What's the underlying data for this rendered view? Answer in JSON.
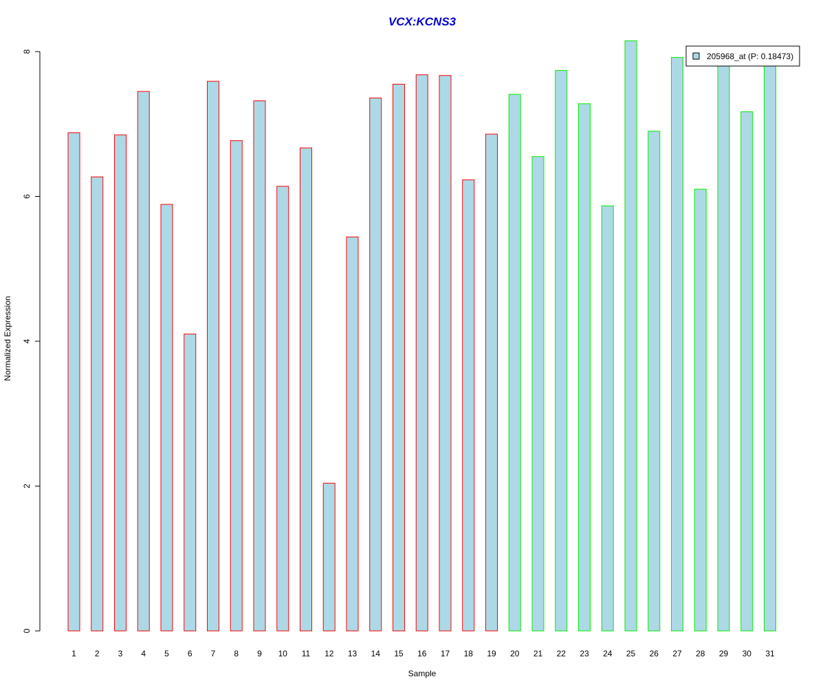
{
  "chart_data": {
    "type": "bar",
    "title": "VCX:KCNS3",
    "xlabel": "Sample",
    "ylabel": "Normalized Expression",
    "categories": [
      "1",
      "2",
      "3",
      "4",
      "5",
      "6",
      "7",
      "8",
      "9",
      "10",
      "11",
      "12",
      "13",
      "14",
      "15",
      "16",
      "17",
      "18",
      "19",
      "20",
      "21",
      "22",
      "23",
      "24",
      "25",
      "26",
      "27",
      "28",
      "29",
      "30",
      "31"
    ],
    "series": [
      {
        "name": "205968_at (P: 0.18473)",
        "values": [
          6.88,
          6.27,
          6.85,
          7.45,
          5.89,
          4.1,
          7.59,
          6.77,
          7.32,
          6.14,
          6.67,
          2.04,
          5.44,
          7.36,
          7.55,
          7.68,
          7.67,
          6.23,
          6.86,
          7.41,
          6.55,
          7.74,
          7.28,
          5.87,
          8.15,
          6.9,
          7.92,
          6.1,
          7.86,
          7.17,
          7.84
        ]
      }
    ],
    "ylim": [
      0,
      8
    ],
    "yticks": [
      0,
      2,
      4,
      6,
      8
    ],
    "grid": false,
    "legend_position": "top-right",
    "colors": {
      "title": "#0000cc",
      "bar_fill": "#add8e6",
      "group1_border": "#ff0000",
      "group2_border": "#00ee00",
      "axis": "#000000"
    },
    "group_border_by_sample": [
      "group1",
      "group1",
      "group1",
      "group1",
      "group1",
      "group1",
      "group1",
      "group1",
      "group1",
      "group1",
      "group1",
      "group1",
      "group1",
      "group1",
      "group1",
      "group1",
      "group1",
      "group1",
      "group1",
      "group2",
      "group2",
      "group2",
      "group2",
      "group2",
      "group2",
      "group2",
      "group2",
      "group2",
      "group2",
      "group2",
      "group2"
    ]
  }
}
